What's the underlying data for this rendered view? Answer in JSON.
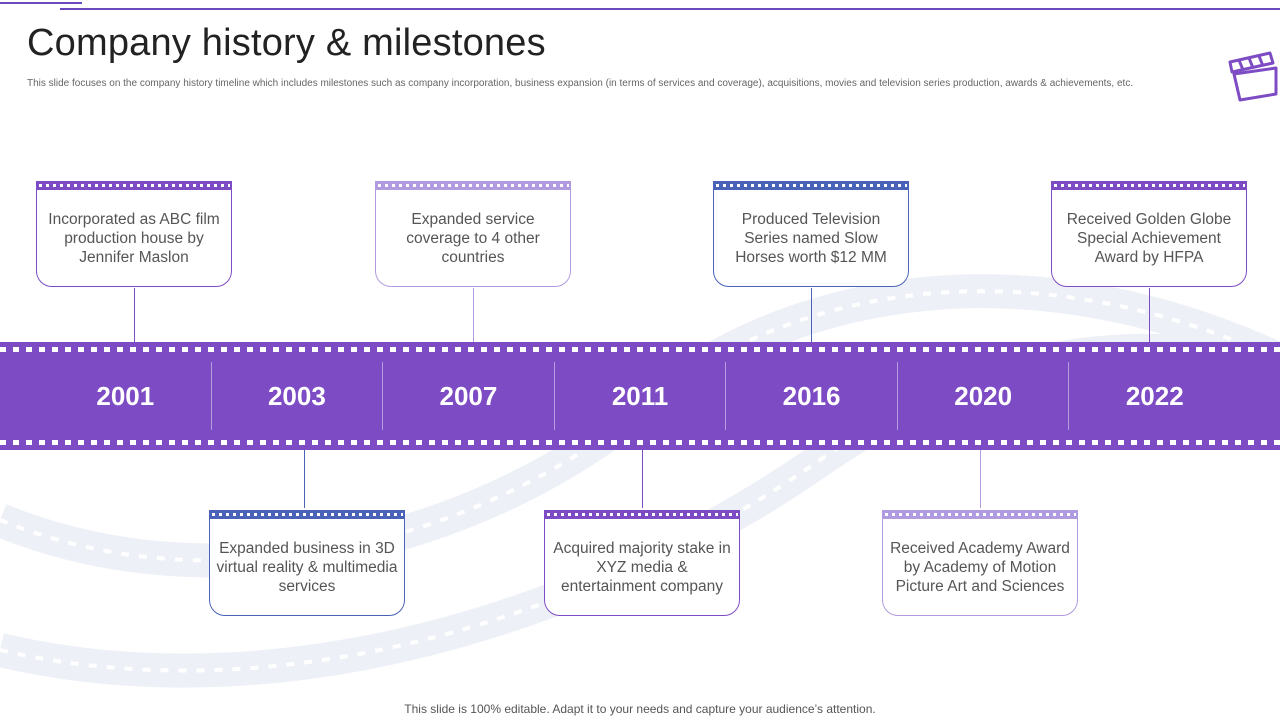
{
  "slide": {
    "title": "Company history & milestones",
    "subtitle": "This slide focuses on the company history timeline  which includes milestones such as company incorporation, business expansion (in terms of services and coverage), acquisitions, movies and television series production, awards & achievements, etc.",
    "footer": "This slide is 100% editable. Adapt it to your needs and capture your audience’s attention."
  },
  "timeline": {
    "years": [
      "2001",
      "2003",
      "2007",
      "2011",
      "2016",
      "2020",
      "2022"
    ]
  },
  "milestones": {
    "m2001": "Incorporated as ABC film production house by Jennifer Maslon",
    "m2003": "Expanded business in 3D virtual reality & multimedia services",
    "m2007": "Expanded service coverage to 4 other countries",
    "m2011": "Acquired majority stake in XYZ media & entertainment company",
    "m2016": "Produced Television Series named Slow Horses worth $12 MM",
    "m2020": "Received Academy Award by Academy of Motion Picture Art and Sciences",
    "m2022": "Received Golden Globe Special Achievement Award by HFPA"
  },
  "icons": {
    "clapper": "clapperboard-icon",
    "background": "film-reel-background"
  },
  "colors": {
    "strip": "#7d4cc4",
    "purple": "#7d4cc4",
    "lavender": "#b19be0",
    "blue": "#4a62b8",
    "background_reel": "#eef0f7"
  }
}
